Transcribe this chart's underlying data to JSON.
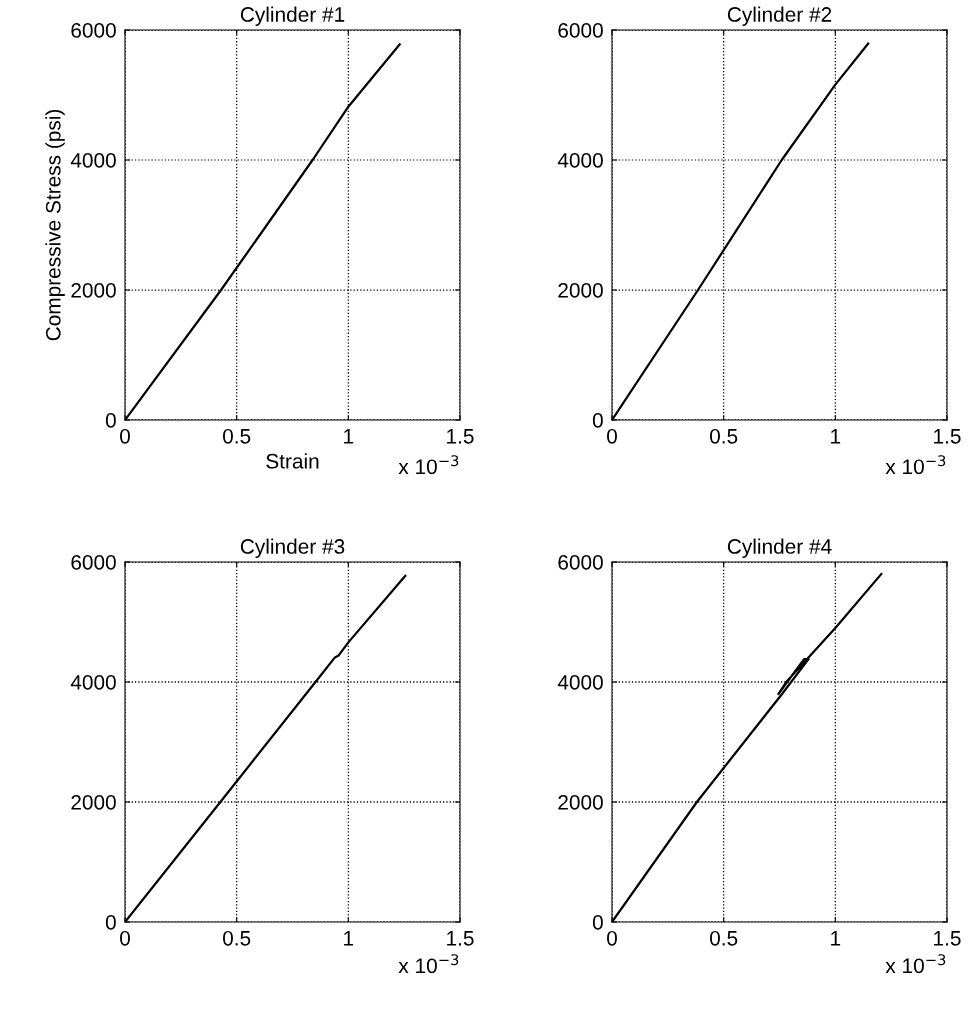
{
  "chart_data": [
    {
      "type": "line",
      "title": "Cylinder #1",
      "xlabel": "Strain",
      "ylabel": "Compressive Stress (psi)",
      "annotations": [
        "x 10$^{−3}$"
      ],
      "line_style": "solid",
      "marker": "none",
      "grid": true,
      "series": [
        {
          "color": "#000000",
          "x": [
            0,
            0.43,
            0.84,
            1.0,
            1.23
          ],
          "values": [
            0,
            2000,
            4000,
            4820,
            5780
          ]
        }
      ],
      "xlim": [
        0,
        1.5
      ],
      "xticks": [
        0,
        0.5,
        1,
        1.5
      ],
      "ylim": [
        0,
        6000
      ],
      "yticks": [
        0,
        2000,
        4000,
        6000
      ]
    },
    {
      "type": "line",
      "title": "Cylinder #2",
      "annotations": [
        "x 10$^{−3}$"
      ],
      "line_style": "solid",
      "marker": "none",
      "grid": true,
      "series": [
        {
          "color": "#000000",
          "x": [
            0,
            0.385,
            0.76,
            1.0,
            1.147
          ],
          "values": [
            0,
            2000,
            4000,
            5160,
            5790
          ]
        }
      ],
      "xlim": [
        0,
        1.5
      ],
      "xticks": [
        0,
        0.5,
        1,
        1.5
      ],
      "ylim": [
        0,
        6000
      ],
      "yticks": [
        0,
        2000,
        4000,
        6000
      ]
    },
    {
      "type": "line",
      "title": "Cylinder #3",
      "annotations": [
        "x 10$^{−3}$"
      ],
      "line_style": "solid",
      "marker": "none",
      "grid": true,
      "series": [
        {
          "color": "#000000",
          "x": [
            0,
            0.427,
            0.853,
            0.94,
            0.956,
            1.0,
            1.255
          ],
          "values": [
            0,
            2000,
            4000,
            4410,
            4440,
            4660,
            5770
          ]
        }
      ],
      "xlim": [
        0,
        1.5
      ],
      "xticks": [
        0,
        0.5,
        1,
        1.5
      ],
      "ylim": [
        0,
        6000
      ],
      "yticks": [
        0,
        2000,
        4000,
        6000
      ]
    },
    {
      "type": "line",
      "title": "Cylinder #4",
      "annotations": [
        "x 10$^{−3}$"
      ],
      "line_style": "solid",
      "marker": "none",
      "grid": true,
      "series": [
        {
          "color": "#000000",
          "x": [
            0,
            0.38,
            0.757,
            0.88,
            0.86,
            0.745,
            0.78,
            1.0,
            1.206
          ],
          "values": [
            0,
            2000,
            3780,
            4380,
            4380,
            3800,
            4000,
            4900,
            5800
          ]
        }
      ],
      "xlim": [
        0,
        1.5
      ],
      "xticks": [
        0,
        0.5,
        1,
        1.5
      ],
      "ylim": [
        0,
        6000
      ],
      "yticks": [
        0,
        2000,
        4000,
        6000
      ]
    }
  ]
}
